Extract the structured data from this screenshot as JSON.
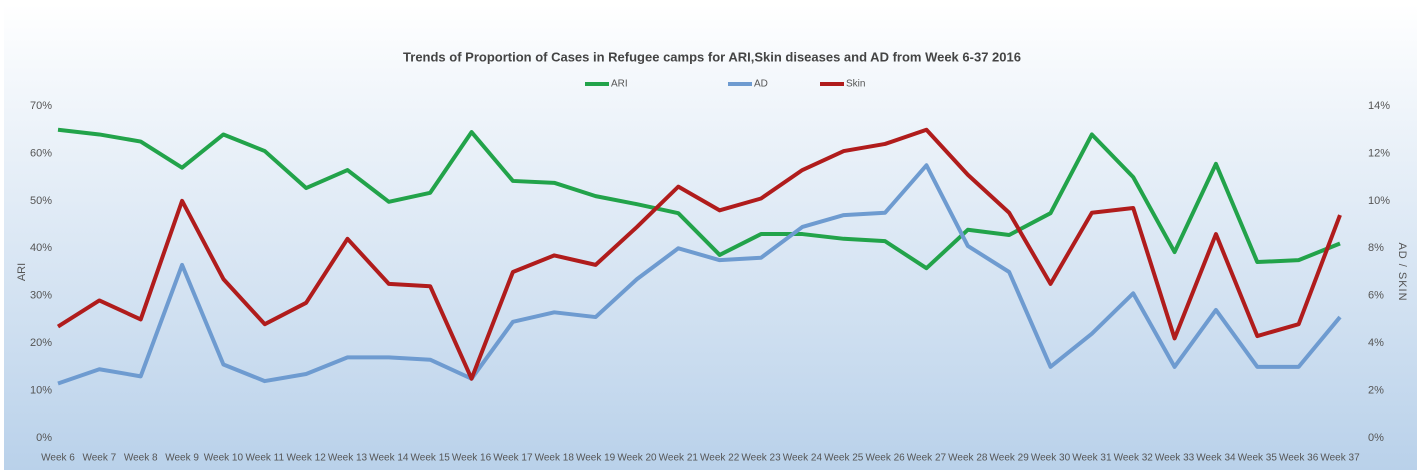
{
  "chart_data": {
    "type": "line",
    "title": "Trends of Proportion of Cases in Refugee camps for ARI,Skin diseases and AD from Week  6-37 2016",
    "ylabel": "ARI",
    "y2label": "AD / SKIN",
    "categories": [
      "Week 6",
      "Week 7",
      "Week 8",
      "Week 9",
      "Week 10",
      "Week 11",
      "Week 12",
      "Week 13",
      "Week 14",
      "Week 15",
      "Week 16",
      "Week 17",
      "Week 18",
      "Week 19",
      "Week 20",
      "Week 21",
      "Week 22",
      "Week 23",
      "Week 24",
      "Week 25",
      "Week 26",
      "Week 27",
      "Week 28",
      "Week 29",
      "Week 30",
      "Week 31",
      "Week 32",
      "Week 33",
      "Week 34",
      "Week 35",
      "Week 36",
      "Week 37"
    ],
    "series": [
      {
        "name": "ARI",
        "color": "#22a34a",
        "axis": "y",
        "values": [
          65,
          64,
          62.5,
          57,
          64,
          60.5,
          52.7,
          56.5,
          49.8,
          51.7,
          64.5,
          54.2,
          53.8,
          51,
          49.3,
          47.4,
          38.6,
          43,
          43,
          42,
          41.5,
          35.8,
          43.9,
          42.8,
          47.4,
          64,
          55,
          39.2,
          57.8,
          37.1,
          37.5,
          41
        ]
      },
      {
        "name": "AD",
        "color": "#6e9bd0",
        "axis": "y2",
        "values": [
          2.3,
          2.9,
          2.6,
          7.3,
          3.1,
          2.4,
          2.7,
          3.4,
          3.4,
          3.3,
          2.5,
          4.9,
          5.3,
          5.1,
          6.7,
          8.0,
          7.5,
          7.6,
          8.9,
          9.4,
          9.5,
          11.5,
          8.1,
          7.0,
          3.0,
          4.4,
          6.1,
          3.0,
          5.4,
          3.0,
          3.0,
          5.1
        ]
      },
      {
        "name": "Skin",
        "color": "#b01c1c",
        "axis": "y2",
        "values": [
          4.7,
          5.8,
          5.0,
          10.0,
          6.7,
          4.8,
          5.7,
          8.4,
          6.5,
          6.4,
          2.5,
          7.0,
          7.7,
          7.3,
          8.9,
          10.6,
          9.6,
          10.1,
          11.3,
          12.1,
          12.4,
          13.0,
          11.1,
          9.5,
          6.5,
          9.5,
          9.7,
          4.2,
          8.6,
          4.3,
          4.8,
          9.4
        ]
      }
    ],
    "ylim": [
      0,
      70
    ],
    "yticks": [
      {
        "value": 0,
        "label": "0%"
      },
      {
        "value": 10,
        "label": "10%"
      },
      {
        "value": 20,
        "label": "20%"
      },
      {
        "value": 30,
        "label": "30%"
      },
      {
        "value": 40,
        "label": "40%"
      },
      {
        "value": 50,
        "label": "50%"
      },
      {
        "value": 60,
        "label": "60%"
      },
      {
        "value": 70,
        "label": "70%"
      }
    ],
    "y2lim": [
      0,
      14
    ],
    "y2ticks": [
      {
        "value": 0,
        "label": "0%"
      },
      {
        "value": 2,
        "label": "2%"
      },
      {
        "value": 4,
        "label": "4%"
      },
      {
        "value": 6,
        "label": "6%"
      },
      {
        "value": 8,
        "label": "8%"
      },
      {
        "value": 10,
        "label": "10%"
      },
      {
        "value": 12,
        "label": "12%"
      },
      {
        "value": 14,
        "label": "14%"
      }
    ],
    "grid": false,
    "legend": "top"
  }
}
